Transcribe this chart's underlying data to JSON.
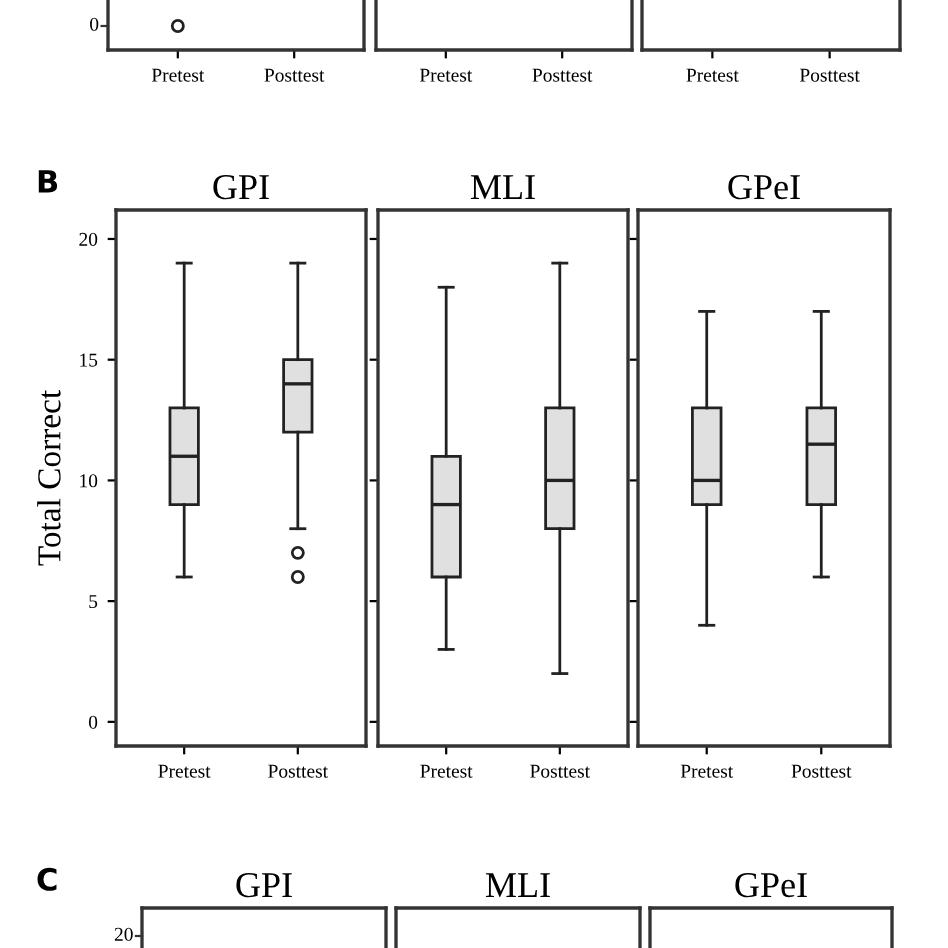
{
  "chart_data": [
    {
      "type": "other",
      "categories": [
        "Pretest",
        "Posttest"
      ],
      "annotations": [
        "0"
      ]
    },
    {
      "type": "other",
      "categories": [
        "Pretest",
        "Posttest"
      ]
    },
    {
      "type": "other",
      "categories": [
        "Pretest",
        "Posttest"
      ]
    },
    {
      "type": "box",
      "title": "GPI",
      "ylabel": "Total Correct",
      "categories": [
        "Pretest",
        "Posttest"
      ],
      "color": "#e0e0e0",
      "ylim": [
        -1,
        21.2
      ],
      "yticks": [
        0,
        5,
        10,
        15,
        20
      ],
      "annotations": [
        "B"
      ],
      "boxes": [
        {
          "low": 6,
          "q1": 9,
          "median": 11,
          "q3": 13,
          "high": 19
        },
        {
          "low": 8,
          "q1": 12,
          "median": 14,
          "q3": 15,
          "high": 19,
          "outliers": [
            7,
            6
          ]
        }
      ]
    },
    {
      "type": "box",
      "title": "MLI",
      "categories": [
        "Pretest",
        "Posttest"
      ],
      "color": "#e0e0e0",
      "ylim": [
        -1,
        21.2
      ],
      "yticks": [
        0,
        5,
        10,
        15,
        20
      ],
      "tick_labels": "x",
      "boxes": [
        {
          "low": 3,
          "q1": 6,
          "median": 9,
          "q3": 11,
          "high": 18
        },
        {
          "low": 2,
          "q1": 8,
          "median": 10,
          "q3": 13,
          "high": 19
        }
      ]
    },
    {
      "type": "box",
      "title": "GPeI",
      "categories": [
        "Pretest",
        "Posttest"
      ],
      "color": "#e0e0e0",
      "ylim": [
        -1,
        21.2
      ],
      "yticks": [
        0,
        5,
        10,
        15,
        20
      ],
      "tick_labels": "x",
      "boxes": [
        {
          "low": 4,
          "q1": 9,
          "median": 10,
          "q3": 13,
          "high": 17
        },
        {
          "low": 6,
          "q1": 9,
          "median": 11.5,
          "q3": 13,
          "high": 17
        }
      ]
    },
    {
      "type": "other",
      "title": "GPI",
      "annotations": [
        "C",
        "20"
      ]
    },
    {
      "type": "other",
      "title": "MLI"
    },
    {
      "type": "other",
      "title": "GPeI"
    }
  ]
}
